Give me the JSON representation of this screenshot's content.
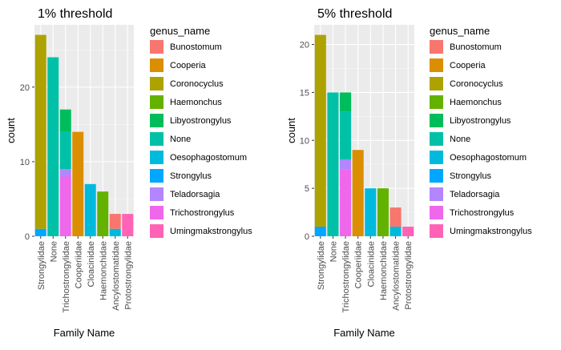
{
  "chart_data": [
    {
      "type": "bar",
      "stacked": true,
      "title": "1% threshold",
      "xlabel": "Family Name",
      "ylabel": "count",
      "ylim": [
        0,
        28.35
      ],
      "yticks": [
        0,
        10,
        20
      ],
      "grid": true,
      "categories": [
        "Strongylidae",
        "None",
        "Trichostrongylidae",
        "Cooperiidae",
        "Cloacinidae",
        "Haemonchidae",
        "Ancylostomatidae",
        "Protostrongylidae"
      ],
      "series": [
        {
          "name": "Bunostomum",
          "values": [
            0,
            0,
            0,
            0,
            0,
            0,
            2,
            0
          ]
        },
        {
          "name": "Cooperia",
          "values": [
            0,
            0,
            0,
            14,
            0,
            0,
            0,
            0
          ]
        },
        {
          "name": "Coronocyclus",
          "values": [
            26,
            0,
            0,
            0,
            0,
            0,
            0,
            0
          ]
        },
        {
          "name": "Haemonchus",
          "values": [
            0,
            0,
            0,
            0,
            0,
            6,
            0,
            0
          ]
        },
        {
          "name": "Libyostrongylus",
          "values": [
            0,
            0,
            3,
            0,
            0,
            0,
            0,
            0
          ]
        },
        {
          "name": "None",
          "values": [
            0,
            24,
            5,
            0,
            0,
            0,
            0,
            0
          ]
        },
        {
          "name": "Oesophagostomum",
          "values": [
            0,
            0,
            0,
            0,
            7,
            0,
            1,
            0
          ]
        },
        {
          "name": "Strongylus",
          "values": [
            1,
            0,
            0,
            0,
            0,
            0,
            0,
            0
          ]
        },
        {
          "name": "Teladorsagia",
          "values": [
            0,
            0,
            1,
            0,
            0,
            0,
            0,
            0
          ]
        },
        {
          "name": "Trichostrongylus",
          "values": [
            0,
            0,
            8,
            0,
            0,
            0,
            0,
            0
          ]
        },
        {
          "name": "Umingmakstrongylus",
          "values": [
            0,
            0,
            0,
            0,
            0,
            0,
            0,
            3
          ]
        }
      ],
      "legend": {
        "title": "genus_name",
        "placement": "right"
      }
    },
    {
      "type": "bar",
      "stacked": true,
      "title": "5% threshold",
      "xlabel": "Family Name",
      "ylabel": "count",
      "ylim": [
        0,
        22.05
      ],
      "yticks": [
        0,
        5,
        10,
        15,
        20
      ],
      "grid": true,
      "categories": [
        "Strongylidae",
        "None",
        "Trichostrongylidae",
        "Cooperiidae",
        "Cloacinidae",
        "Haemonchidae",
        "Ancylostomatidae",
        "Protostrongylidae"
      ],
      "series": [
        {
          "name": "Bunostomum",
          "values": [
            0,
            0,
            0,
            0,
            0,
            0,
            2,
            0
          ]
        },
        {
          "name": "Cooperia",
          "values": [
            0,
            0,
            0,
            9,
            0,
            0,
            0,
            0
          ]
        },
        {
          "name": "Coronocyclus",
          "values": [
            20,
            0,
            0,
            0,
            0,
            0,
            0,
            0
          ]
        },
        {
          "name": "Haemonchus",
          "values": [
            0,
            0,
            0,
            0,
            0,
            5,
            0,
            0
          ]
        },
        {
          "name": "Libyostrongylus",
          "values": [
            0,
            0,
            2,
            0,
            0,
            0,
            0,
            0
          ]
        },
        {
          "name": "None",
          "values": [
            0,
            15,
            5,
            0,
            0,
            0,
            0,
            0
          ]
        },
        {
          "name": "Oesophagostomum",
          "values": [
            0,
            0,
            0,
            0,
            5,
            0,
            1,
            0
          ]
        },
        {
          "name": "Strongylus",
          "values": [
            1,
            0,
            0,
            0,
            0,
            0,
            0,
            0
          ]
        },
        {
          "name": "Teladorsagia",
          "values": [
            0,
            0,
            1,
            0,
            0,
            0,
            0,
            0
          ]
        },
        {
          "name": "Trichostrongylus",
          "values": [
            0,
            0,
            7,
            0,
            0,
            0,
            0,
            0
          ]
        },
        {
          "name": "Umingmakstrongylus",
          "values": [
            0,
            0,
            0,
            0,
            0,
            0,
            0,
            1
          ]
        }
      ],
      "legend": {
        "title": "genus_name",
        "placement": "right"
      }
    }
  ],
  "colors": {
    "Bunostomum": "#F8766D",
    "Cooperia": "#DB8E00",
    "Coronocyclus": "#AEA200",
    "Haemonchus": "#64B200",
    "Libyostrongylus": "#00BD5C",
    "None": "#00C1A7",
    "Oesophagostomum": "#00BADE",
    "Strongylus": "#00A6FF",
    "Teladorsagia": "#B385FF",
    "Trichostrongylus": "#EF67EB",
    "Umingmakstrongylus": "#FF63B6",
    "panel_background": "#EBEBEB",
    "grid_major": "#FFFFFF",
    "grid_minor": "#F5F5F5"
  }
}
